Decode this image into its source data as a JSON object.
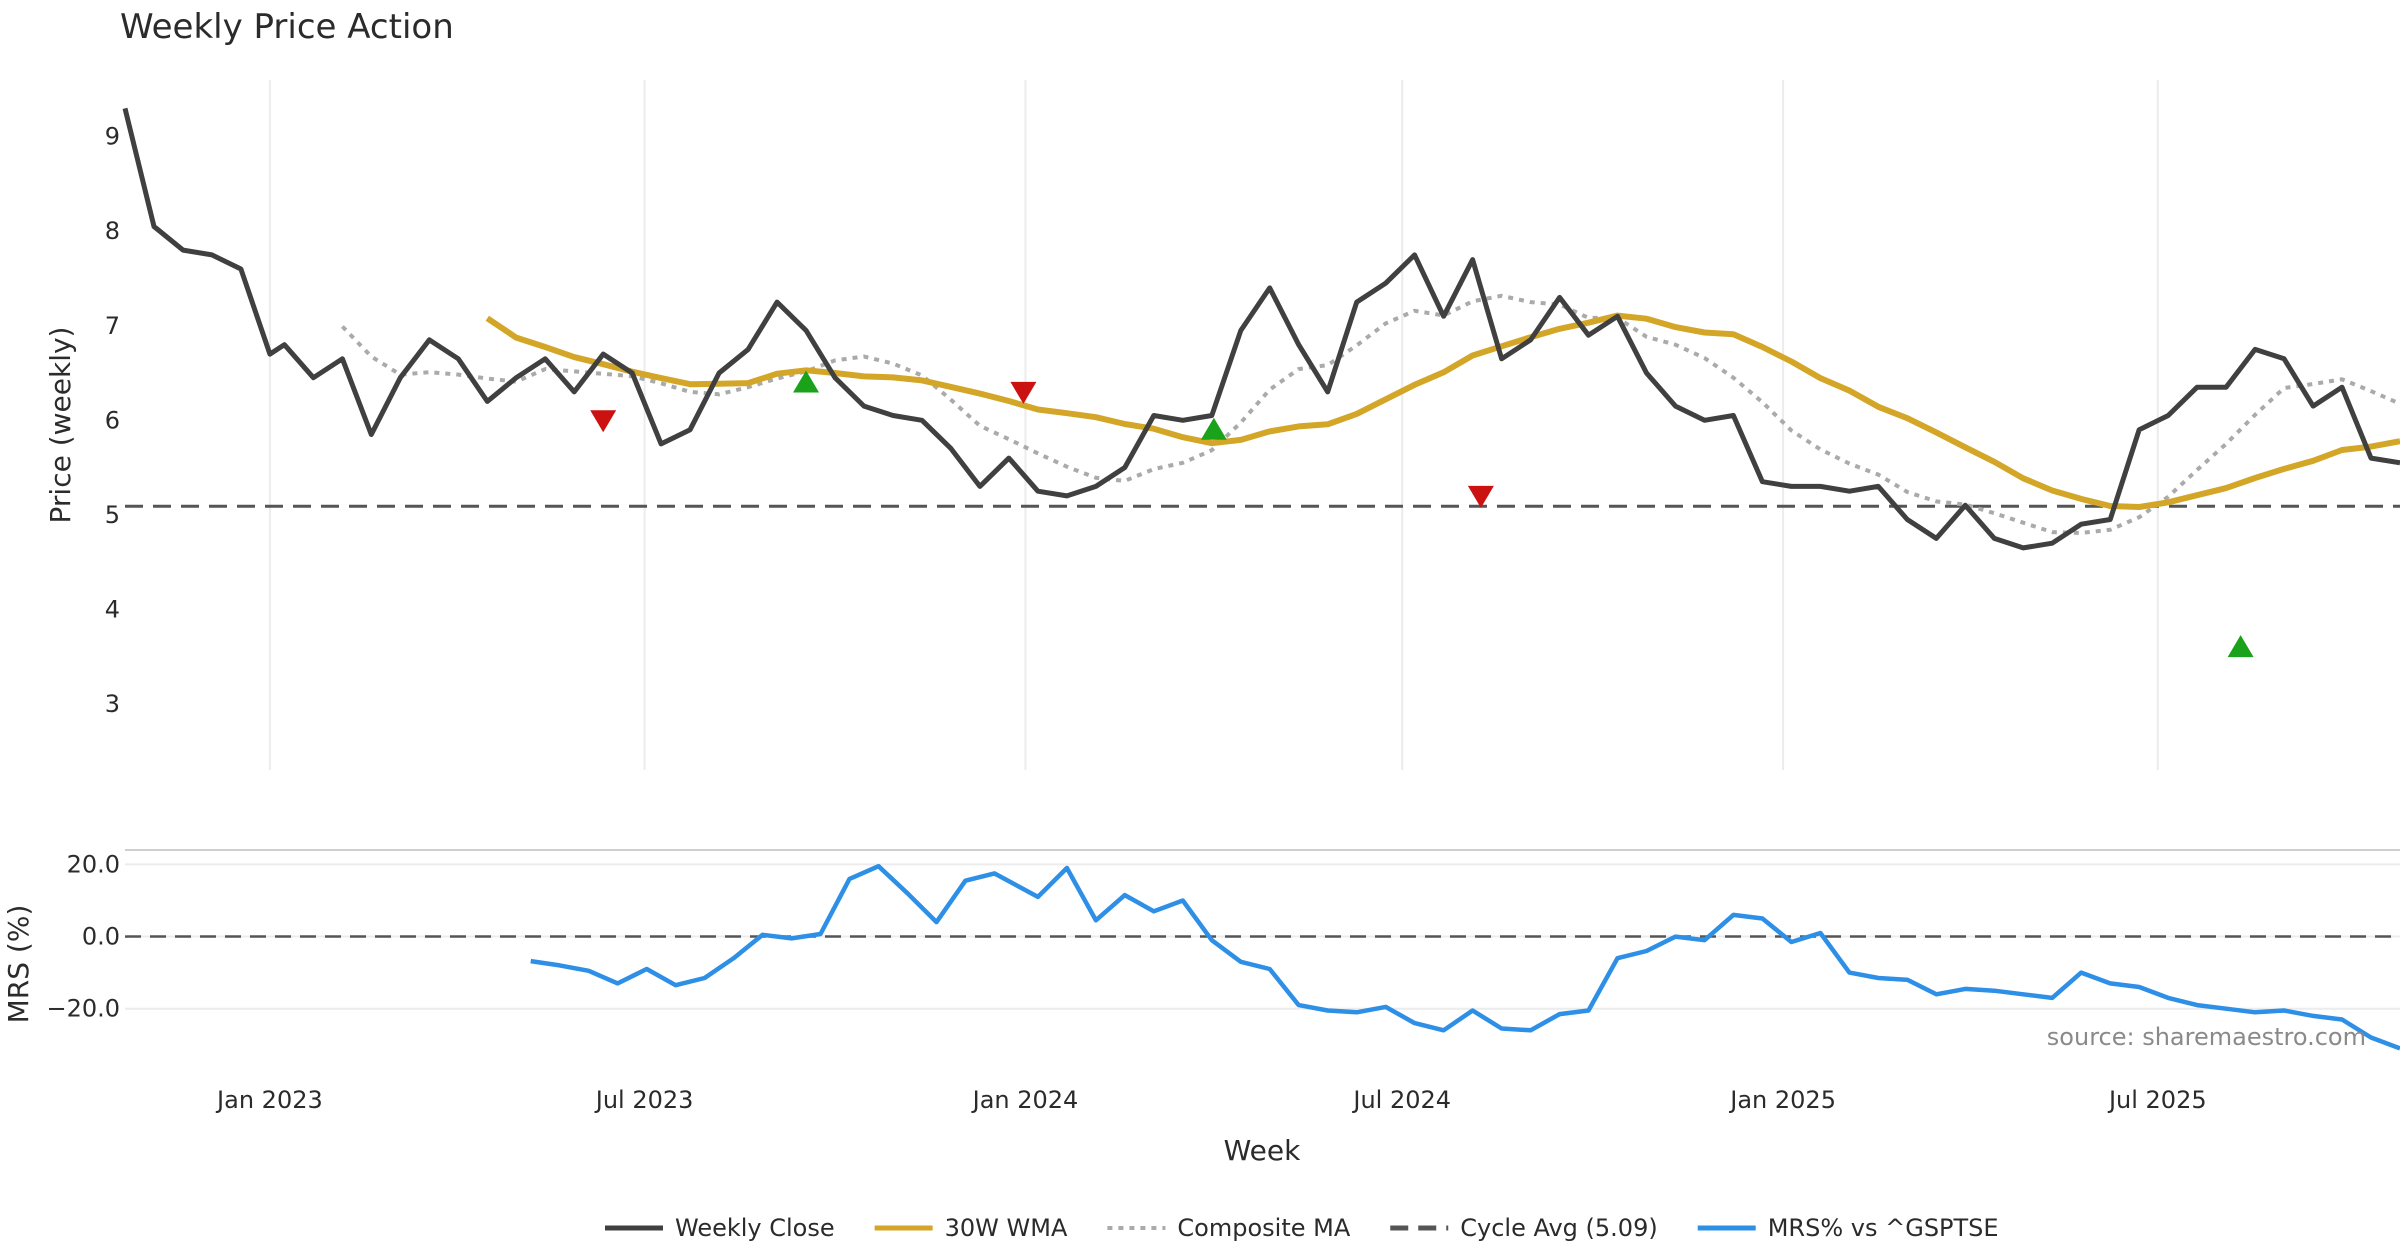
{
  "chart_data": {
    "type": "line",
    "title": "Weekly Price Action",
    "source": "source: sharemaestro.com",
    "xlabel": "Week",
    "x_ticks": [
      "Jan 2023",
      "Jul 2023",
      "Jan 2024",
      "Jul 2024",
      "Jan 2025",
      "Jul 2025"
    ],
    "x_tick_dates": [
      "2023-01-01",
      "2023-07-01",
      "2024-01-01",
      "2024-07-01",
      "2025-01-01",
      "2025-07-01"
    ],
    "x_range": [
      "2022-10-23",
      "2025-10-26"
    ],
    "grid": true,
    "legend_position": "bottom",
    "colors": {
      "close": "#404040",
      "wma": "#d4a628",
      "composite": "#aaaaaa",
      "cycle": "#555555",
      "mrs": "#2e8fe6",
      "zero": "#555555",
      "up": "#1aa21a",
      "down": "#cc1111"
    },
    "legend": [
      {
        "key": "close",
        "label": "Weekly Close",
        "style": "solid"
      },
      {
        "key": "wma",
        "label": "30W WMA",
        "style": "solid"
      },
      {
        "key": "composite",
        "label": "Composite MA",
        "style": "dotted"
      },
      {
        "key": "cycle",
        "label": "Cycle Avg (5.09)",
        "style": "dashed"
      },
      {
        "key": "mrs",
        "label": "MRS% vs ^GSPTSE",
        "style": "solid"
      }
    ],
    "price_panel": {
      "ylabel": "Price (weekly)",
      "ylim": [
        2.3,
        9.6
      ],
      "y_ticks": [
        3,
        4,
        5,
        6,
        7,
        8,
        9
      ],
      "cycle_avg": 5.09,
      "series": [
        {
          "key": "close",
          "name": "Weekly Close",
          "points": [
            [
              "2022-10-23",
              9.3
            ],
            [
              "2022-11-06",
              8.05
            ],
            [
              "2022-11-20",
              7.8
            ],
            [
              "2022-12-04",
              7.75
            ],
            [
              "2022-12-18",
              7.6
            ],
            [
              "2023-01-01",
              6.7
            ],
            [
              "2023-01-08",
              6.8
            ],
            [
              "2023-01-22",
              6.45
            ],
            [
              "2023-02-05",
              6.65
            ],
            [
              "2023-02-19",
              5.85
            ],
            [
              "2023-03-05",
              6.45
            ],
            [
              "2023-03-19",
              6.85
            ],
            [
              "2023-04-02",
              6.65
            ],
            [
              "2023-04-16",
              6.2
            ],
            [
              "2023-04-30",
              6.45
            ],
            [
              "2023-05-14",
              6.65
            ],
            [
              "2023-05-28",
              6.3
            ],
            [
              "2023-06-11",
              6.7
            ],
            [
              "2023-06-25",
              6.5
            ],
            [
              "2023-07-09",
              5.75
            ],
            [
              "2023-07-23",
              5.9
            ],
            [
              "2023-08-06",
              6.5
            ],
            [
              "2023-08-20",
              6.75
            ],
            [
              "2023-09-03",
              7.25
            ],
            [
              "2023-09-17",
              6.95
            ],
            [
              "2023-10-01",
              6.45
            ],
            [
              "2023-10-15",
              6.15
            ],
            [
              "2023-10-29",
              6.05
            ],
            [
              "2023-11-12",
              6.0
            ],
            [
              "2023-11-26",
              5.7
            ],
            [
              "2023-12-10",
              5.3
            ],
            [
              "2023-12-24",
              5.6
            ],
            [
              "2024-01-07",
              5.25
            ],
            [
              "2024-01-21",
              5.2
            ],
            [
              "2024-02-04",
              5.3
            ],
            [
              "2024-02-18",
              5.5
            ],
            [
              "2024-03-03",
              6.05
            ],
            [
              "2024-03-17",
              6.0
            ],
            [
              "2024-03-31",
              6.05
            ],
            [
              "2024-04-14",
              6.95
            ],
            [
              "2024-04-28",
              7.4
            ],
            [
              "2024-05-12",
              6.8
            ],
            [
              "2024-05-26",
              6.3
            ],
            [
              "2024-06-09",
              7.25
            ],
            [
              "2024-06-23",
              7.45
            ],
            [
              "2024-07-07",
              7.75
            ],
            [
              "2024-07-21",
              7.1
            ],
            [
              "2024-08-04",
              7.7
            ],
            [
              "2024-08-18",
              6.65
            ],
            [
              "2024-09-01",
              6.85
            ],
            [
              "2024-09-15",
              7.3
            ],
            [
              "2024-09-29",
              6.9
            ],
            [
              "2024-10-13",
              7.1
            ],
            [
              "2024-10-27",
              6.5
            ],
            [
              "2024-11-10",
              6.15
            ],
            [
              "2024-11-24",
              6.0
            ],
            [
              "2024-12-08",
              6.05
            ],
            [
              "2024-12-22",
              5.35
            ],
            [
              "2025-01-05",
              5.3
            ],
            [
              "2025-01-19",
              5.3
            ],
            [
              "2025-02-02",
              5.25
            ],
            [
              "2025-02-16",
              5.3
            ],
            [
              "2025-03-02",
              4.95
            ],
            [
              "2025-03-16",
              4.75
            ],
            [
              "2025-03-30",
              5.1
            ],
            [
              "2025-04-13",
              4.75
            ],
            [
              "2025-04-27",
              4.65
            ],
            [
              "2025-05-11",
              4.7
            ],
            [
              "2025-05-25",
              4.9
            ],
            [
              "2025-06-08",
              4.95
            ],
            [
              "2025-06-22",
              5.9
            ],
            [
              "2025-07-06",
              6.05
            ],
            [
              "2025-07-20",
              6.35
            ],
            [
              "2025-08-03",
              6.35
            ],
            [
              "2025-08-17",
              6.75
            ],
            [
              "2025-08-31",
              6.65
            ],
            [
              "2025-09-14",
              6.15
            ],
            [
              "2025-09-28",
              6.35
            ],
            [
              "2025-10-12",
              5.6
            ],
            [
              "2025-10-26",
              5.55
            ]
          ]
        }
      ]
    },
    "mrs_panel": {
      "ylabel": "MRS (%)",
      "ylim": [
        -37,
        24
      ],
      "y_ticks": [
        20.0,
        0.0,
        -20.0
      ],
      "zero_line": 0,
      "series": [
        {
          "key": "mrs",
          "name": "MRS% vs ^GSPTSE",
          "points": [
            [
              "2023-05-07",
              -6.8
            ],
            [
              "2023-05-21",
              -8
            ],
            [
              "2023-06-04",
              -9.5
            ],
            [
              "2023-06-18",
              -13
            ],
            [
              "2023-07-02",
              -9
            ],
            [
              "2023-07-16",
              -13.5
            ],
            [
              "2023-07-30",
              -11.5
            ],
            [
              "2023-08-13",
              -6
            ],
            [
              "2023-08-27",
              0.5
            ],
            [
              "2023-09-10",
              -0.5
            ],
            [
              "2023-09-24",
              0.7
            ],
            [
              "2023-10-08",
              16
            ],
            [
              "2023-10-22",
              19.5
            ],
            [
              "2023-11-05",
              12
            ],
            [
              "2023-11-19",
              4
            ],
            [
              "2023-12-03",
              15.5
            ],
            [
              "2023-12-17",
              17.5
            ],
            [
              "2024-01-07",
              11
            ],
            [
              "2024-01-21",
              19
            ],
            [
              "2024-02-04",
              4.5
            ],
            [
              "2024-02-18",
              11.5
            ],
            [
              "2024-03-03",
              7
            ],
            [
              "2024-03-17",
              10
            ],
            [
              "2024-03-31",
              -1
            ],
            [
              "2024-04-14",
              -7
            ],
            [
              "2024-04-28",
              -9
            ],
            [
              "2024-05-12",
              -19
            ],
            [
              "2024-05-26",
              -20.5
            ],
            [
              "2024-06-09",
              -21
            ],
            [
              "2024-06-23",
              -19.5
            ],
            [
              "2024-07-07",
              -24
            ],
            [
              "2024-07-21",
              -26
            ],
            [
              "2024-08-04",
              -20.5
            ],
            [
              "2024-08-18",
              -25.5
            ],
            [
              "2024-09-01",
              -26
            ],
            [
              "2024-09-15",
              -21.5
            ],
            [
              "2024-09-29",
              -20.5
            ],
            [
              "2024-10-13",
              -6
            ],
            [
              "2024-10-27",
              -4
            ],
            [
              "2024-11-10",
              0
            ],
            [
              "2024-11-24",
              -1
            ],
            [
              "2024-12-08",
              6
            ],
            [
              "2024-12-22",
              5
            ],
            [
              "2025-01-05",
              -1.5
            ],
            [
              "2025-01-19",
              1
            ],
            [
              "2025-02-02",
              -10
            ],
            [
              "2025-02-16",
              -11.5
            ],
            [
              "2025-03-02",
              -12
            ],
            [
              "2025-03-16",
              -16
            ],
            [
              "2025-03-30",
              -14.5
            ],
            [
              "2025-04-13",
              -15
            ],
            [
              "2025-04-27",
              -16
            ],
            [
              "2025-05-11",
              -17
            ],
            [
              "2025-05-25",
              -10
            ],
            [
              "2025-06-08",
              -13
            ],
            [
              "2025-06-22",
              -14
            ],
            [
              "2025-07-06",
              -17
            ],
            [
              "2025-07-20",
              -19
            ],
            [
              "2025-08-03",
              -20
            ],
            [
              "2025-08-17",
              -21
            ],
            [
              "2025-08-31",
              -20.5
            ],
            [
              "2025-09-14",
              -22
            ],
            [
              "2025-09-28",
              -23
            ],
            [
              "2025-10-12",
              -28
            ],
            [
              "2025-10-26",
              -31
            ]
          ]
        }
      ]
    },
    "signals": [
      {
        "type": "down",
        "date": "2023-06-11",
        "price": 6.0
      },
      {
        "type": "up",
        "date": "2023-09-17",
        "price": 6.4
      },
      {
        "type": "down",
        "date": "2023-12-31",
        "price": 6.3
      },
      {
        "type": "up",
        "date": "2024-04-01",
        "price": 5.9
      },
      {
        "type": "down",
        "date": "2024-08-08",
        "price": 5.2
      },
      {
        "type": "up",
        "date": "2025-08-10",
        "price": 3.6
      }
    ]
  }
}
